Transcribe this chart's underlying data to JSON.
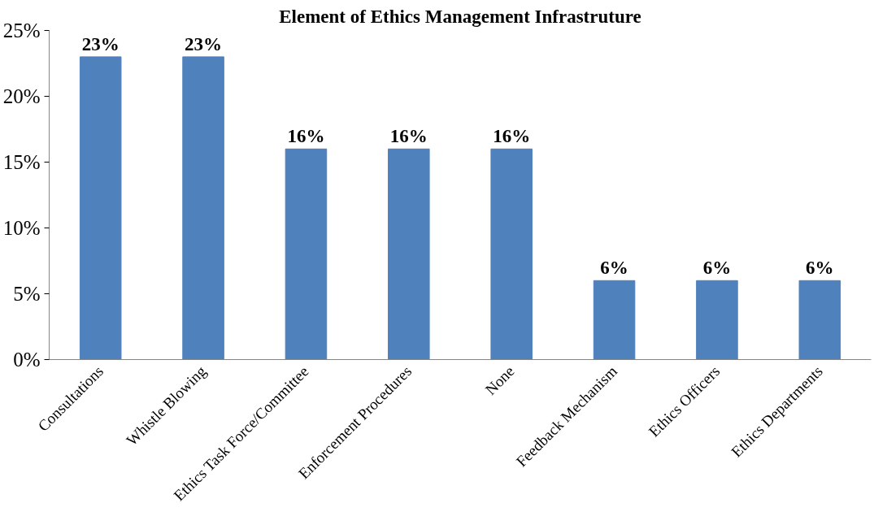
{
  "chart_data": {
    "type": "bar",
    "title": "Element of Ethics Management Infrastruture",
    "categories": [
      "Consultations",
      "Whistle Blowing",
      "Ethics Task Force/Committee",
      "Enforcement Procedures",
      "None",
      "Feedback Mechanism",
      "Ethics Officers",
      "Ethics Departments"
    ],
    "values": [
      23,
      23,
      16,
      16,
      16,
      6,
      6,
      6
    ],
    "color": "#4f81bd",
    "value_labels": [
      "23%",
      "23%",
      "16%",
      "16%",
      "16%",
      "6%",
      "6%",
      "6%"
    ],
    "ylim": [
      0,
      25
    ],
    "yticks": [
      {
        "value": 0,
        "label": "0%"
      },
      {
        "value": 5,
        "label": "5%"
      },
      {
        "value": 10,
        "label": "10%"
      },
      {
        "value": 15,
        "label": "15%"
      },
      {
        "value": 20,
        "label": "20%"
      },
      {
        "value": 25,
        "label": "25%"
      }
    ],
    "grid": false
  }
}
